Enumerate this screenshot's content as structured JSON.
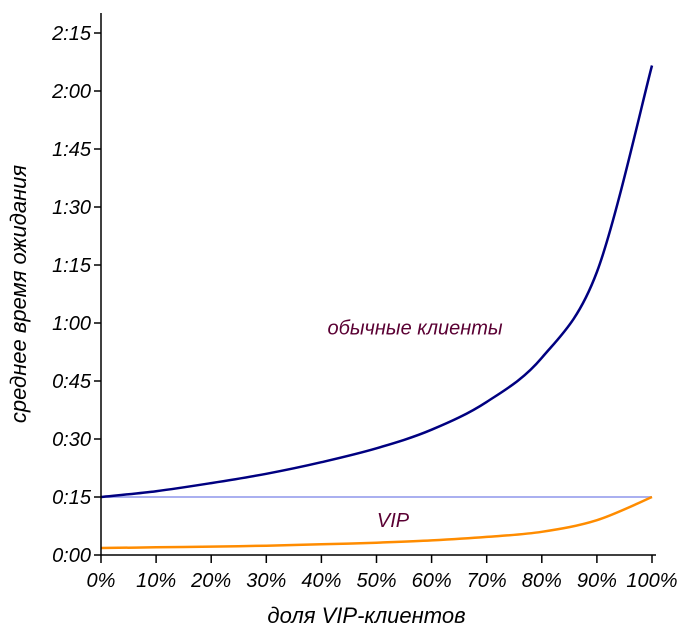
{
  "chart_data": {
    "type": "line",
    "xlabel": "доля VIP-клиентов",
    "ylabel": "среднее время ожидания",
    "xlim": [
      0,
      100
    ],
    "ylim": [
      0,
      2.25
    ],
    "x_ticks": [
      "0%",
      "10%",
      "20%",
      "30%",
      "40%",
      "50%",
      "60%",
      "70%",
      "80%",
      "90%",
      "100%"
    ],
    "y_ticks": [
      "0:00",
      "0:15",
      "0:30",
      "0:45",
      "1:00",
      "1:15",
      "1:30",
      "1:45",
      "2:00",
      "2:15"
    ],
    "grid": false,
    "series": [
      {
        "name": "обычные клиенты",
        "color": "#000080",
        "x": [
          0,
          10,
          20,
          30,
          40,
          50,
          60,
          70,
          80,
          90,
          100
        ],
        "y": [
          0.25,
          0.275,
          0.31,
          0.35,
          0.4,
          0.46,
          0.54,
          0.66,
          0.85,
          1.22,
          2.11
        ]
      },
      {
        "name": "VIP",
        "color": "#ff8c00",
        "x": [
          0,
          10,
          20,
          30,
          40,
          50,
          60,
          70,
          80,
          90,
          100
        ],
        "y": [
          0.03,
          0.033,
          0.036,
          0.04,
          0.046,
          0.053,
          0.063,
          0.078,
          0.1,
          0.15,
          0.25
        ]
      },
      {
        "color": "#aab0f0",
        "x": [
          0,
          100
        ],
        "y": [
          0.25,
          0.25
        ]
      }
    ]
  }
}
